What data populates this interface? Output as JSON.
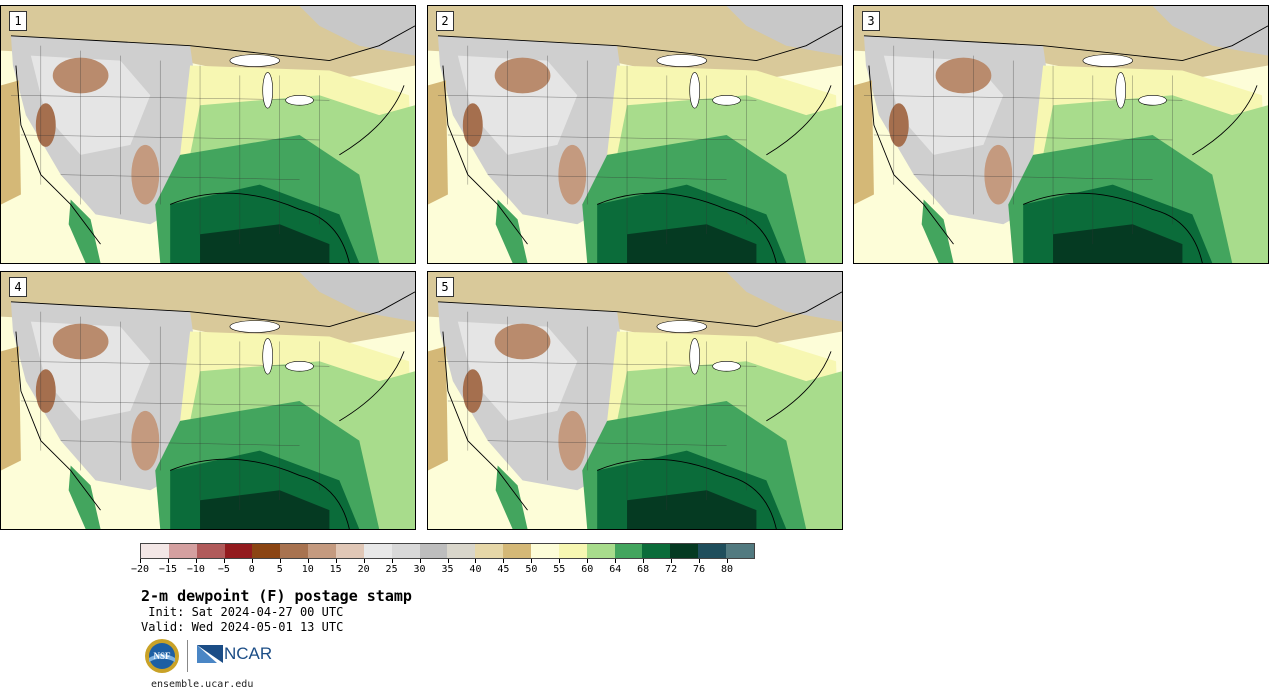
{
  "panels": [
    {
      "label": "1"
    },
    {
      "label": "2"
    },
    {
      "label": "3"
    },
    {
      "label": "4"
    },
    {
      "label": "5"
    }
  ],
  "colorbar": {
    "colors": [
      "#f3e7e6",
      "#d4a0a0",
      "#b05a5a",
      "#931b1e",
      "#8b4513",
      "#a87350",
      "#c49a7f",
      "#e0c7b6",
      "#e8e8e8",
      "#d8d8d8",
      "#bdbdbd",
      "#d9d6cb",
      "#e6d7a8",
      "#d4b877",
      "#fdfdd8",
      "#f7f7b2",
      "#a8dc8c",
      "#43a55e",
      "#0b6c3a",
      "#053a22",
      "#1f4e5c",
      "#527a80"
    ],
    "tick_labels": [
      "−20",
      "−15",
      "−10",
      "−5",
      "0",
      "5",
      "10",
      "15",
      "20",
      "25",
      "30",
      "35",
      "40",
      "45",
      "50",
      "55",
      "60",
      "64",
      "68",
      "72",
      "76",
      "80"
    ]
  },
  "title": "2-m dewpoint (F) postage stamp",
  "init": " Init: Sat 2024-04-27 00 UTC",
  "valid": "Valid: Wed 2024-05-01 13 UTC",
  "logos": {
    "nsf": "NSF",
    "ncar": "NCAR"
  },
  "url": "ensemble.ucar.edu"
}
